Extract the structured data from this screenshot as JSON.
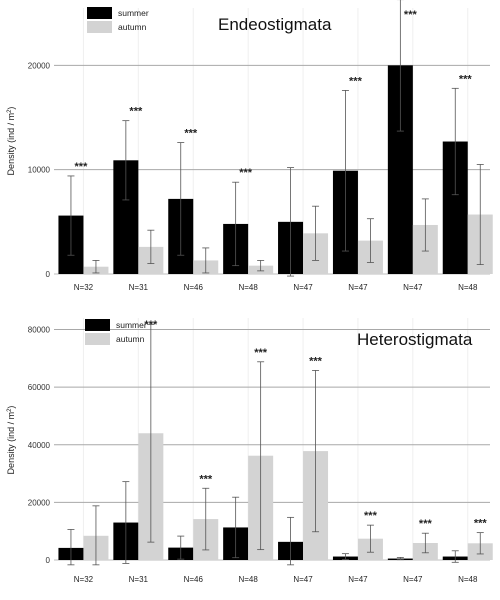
{
  "chart_data": [
    {
      "type": "bar",
      "title": "Endeostigmata",
      "ylabel_base": "Density (ind / m",
      "ylabel_sup": "2",
      "ylabel_tail": ")",
      "ylim": [
        0,
        25500
      ],
      "yticks": [
        0,
        10000,
        20000
      ],
      "grid": true,
      "legend_position": "top-left",
      "categories": [
        "N=32",
        "N=31",
        "N=46",
        "N=48",
        "N=47",
        "N=47",
        "N=47",
        "N=48"
      ],
      "series": [
        {
          "name": "summer",
          "color": "#000000",
          "values": [
            5600,
            10900,
            7200,
            4800,
            5000,
            9900,
            20000,
            12700
          ],
          "error": [
            3800,
            3800,
            5400,
            4000,
            5200,
            7700,
            6300,
            5100
          ]
        },
        {
          "name": "autumn",
          "color": "#d3d3d3",
          "values": [
            700,
            2600,
            1300,
            800,
            3900,
            3200,
            4700,
            5700
          ],
          "error": [
            600,
            1600,
            1200,
            500,
            2600,
            2100,
            2500,
            4800
          ]
        }
      ],
      "significance": {
        "label": "***",
        "indices": [
          0,
          1,
          2,
          3,
          5,
          6,
          7
        ]
      }
    },
    {
      "type": "bar",
      "title": "Heterostigmata",
      "ylabel_base": "Density (ind / m",
      "ylabel_sup": "2",
      "ylabel_tail": ")",
      "ylim": [
        0,
        84000
      ],
      "yticks": [
        0,
        20000,
        40000,
        60000,
        80000
      ],
      "grid": true,
      "legend_position": "top-left",
      "categories": [
        "N=32",
        "N=31",
        "N=46",
        "N=48",
        "N=47",
        "N=47",
        "N=47",
        "N=48"
      ],
      "series": [
        {
          "name": "summer",
          "color": "#000000",
          "values": [
            4200,
            13000,
            4300,
            11300,
            6300,
            1200,
            500,
            1200
          ],
          "error": [
            6400,
            14200,
            4000,
            10500,
            8500,
            1000,
            400,
            2000
          ]
        },
        {
          "name": "autumn",
          "color": "#d3d3d3",
          "values": [
            8400,
            44000,
            14200,
            36200,
            37800,
            7400,
            5900,
            5800
          ],
          "error": [
            10400,
            37800,
            10700,
            32600,
            28000,
            4700,
            3400,
            3700
          ]
        }
      ],
      "significance": {
        "label": "***",
        "indices": [
          1,
          2,
          3,
          4,
          5,
          6,
          7
        ]
      }
    }
  ]
}
